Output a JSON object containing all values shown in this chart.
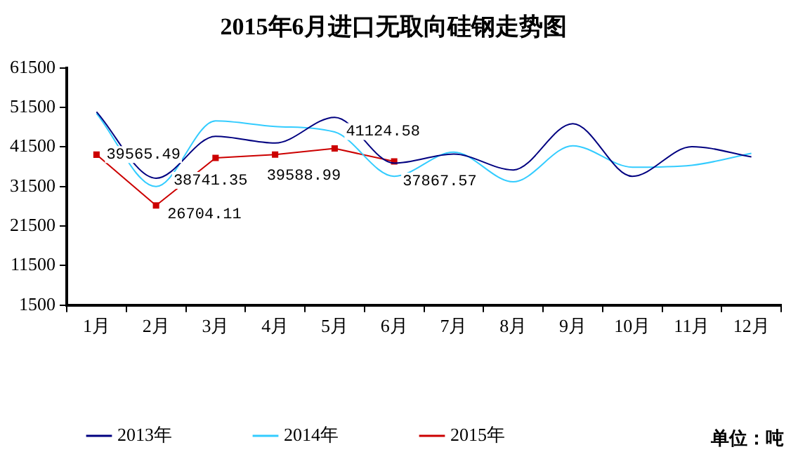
{
  "chart_data": {
    "type": "line",
    "title": "2015年6月进口无取向硅钢走势图",
    "categories": [
      "1月",
      "2月",
      "3月",
      "4月",
      "5月",
      "6月",
      "7月",
      "8月",
      "9月",
      "10月",
      "11月",
      "12月"
    ],
    "series": [
      {
        "name": "2013年",
        "color": "#000080",
        "marker": "none",
        "values": [
          50400,
          33600,
          44200,
          42500,
          49000,
          37400,
          39700,
          35700,
          47400,
          34100,
          41600,
          39000
        ]
      },
      {
        "name": "2014年",
        "color": "#33ccff",
        "marker": "none",
        "values": [
          50000,
          31500,
          48100,
          46700,
          45300,
          34100,
          40200,
          32700,
          41800,
          36400,
          36900,
          39900
        ]
      },
      {
        "name": "2015年",
        "color": "#cc0000",
        "marker": "square",
        "values": [
          39565.49,
          26704.11,
          38741.35,
          39588.99,
          41124.58,
          37867.57,
          null,
          null,
          null,
          null,
          null,
          null
        ],
        "value_labels": [
          "39565.49",
          "26704.11",
          "38741.35",
          "39588.99",
          "41124.58",
          "37867.57",
          null,
          null,
          null,
          null,
          null,
          null
        ]
      }
    ],
    "ylim": [
      1500,
      61500
    ],
    "yticks": [
      1500,
      11500,
      21500,
      31500,
      41500,
      51500,
      61500
    ],
    "grid": false,
    "legend": "bottom left",
    "annotations": [
      "单位：吨"
    ]
  }
}
